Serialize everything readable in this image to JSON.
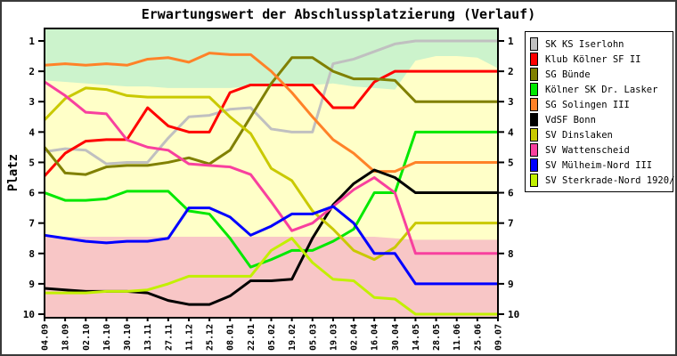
{
  "window": {
    "title": "Erwartungswert der Abschlussplatzierung (Verlauf)"
  },
  "chart_data": {
    "type": "line",
    "title": "Erwartungswert der Abschlussplatzierung (Verlauf)",
    "ylabel": "Platz",
    "xlabel": "",
    "y_inverted": true,
    "ylim": [
      1,
      10
    ],
    "y_ticks": [
      "1",
      "2",
      "3",
      "4",
      "5",
      "6",
      "7",
      "8",
      "9",
      "10"
    ],
    "x_labels": [
      "04.09",
      "18.09",
      "02.10",
      "16.10",
      "30.10",
      "13.11",
      "27.11",
      "11.12",
      "25.12",
      "08.01",
      "22.01",
      "05.02",
      "19.02",
      "05.03",
      "19.03",
      "02.04",
      "16.04",
      "30.04",
      "14.05",
      "28.05",
      "11.06",
      "25.06",
      "09.07"
    ],
    "legend_position": "right",
    "grid": false,
    "zones": {
      "green_zone_color": "#ccf3cc",
      "yellow_zone_color": "#ffffc8",
      "pink_zone_color": "#f8c6c6",
      "green_bottom_boundary": [
        2.3,
        2.35,
        2.4,
        2.45,
        2.5,
        2.5,
        2.55,
        2.55,
        2.55,
        2.55,
        2.5,
        2.5,
        2.5,
        2.45,
        2.4,
        2.5,
        2.55,
        2.6,
        1.65,
        1.5,
        1.5,
        1.55,
        1.9
      ],
      "pink_top_boundary": [
        7.45,
        7.45,
        7.45,
        7.45,
        7.45,
        7.45,
        7.45,
        7.45,
        7.45,
        7.45,
        7.45,
        7.45,
        7.45,
        7.45,
        7.45,
        7.45,
        7.45,
        7.5,
        7.55,
        7.55,
        7.55,
        7.55,
        7.55
      ]
    },
    "series": [
      {
        "name": "SK KS Iserlohn",
        "color": "#c0c0c0",
        "values": [
          4.65,
          4.55,
          4.6,
          5.05,
          5.0,
          5.0,
          4.2,
          3.5,
          3.45,
          3.25,
          3.2,
          3.9,
          4.0,
          4.0,
          1.75,
          1.6,
          1.35,
          1.1,
          1.0,
          1.0,
          1.0,
          1.0,
          1.0
        ]
      },
      {
        "name": "Klub Kölner SF II",
        "color": "#ff0000",
        "values": [
          5.45,
          4.7,
          4.3,
          4.25,
          4.25,
          3.2,
          3.8,
          4.0,
          4.0,
          2.7,
          2.45,
          2.45,
          2.45,
          2.45,
          3.2,
          3.2,
          2.35,
          2.0,
          2.0,
          2.0,
          2.0,
          2.0,
          2.0
        ]
      },
      {
        "name": "SG Bünde",
        "color": "#808000",
        "values": [
          4.5,
          5.35,
          5.4,
          5.15,
          5.1,
          5.1,
          5.0,
          4.85,
          5.05,
          4.6,
          3.5,
          2.4,
          1.55,
          1.55,
          2.0,
          2.25,
          2.25,
          2.3,
          3.0,
          3.0,
          3.0,
          3.0,
          3.0
        ]
      },
      {
        "name": "Kölner SK Dr. Lasker",
        "color": "#00e800",
        "values": [
          6.0,
          6.25,
          6.25,
          6.2,
          5.95,
          5.95,
          5.95,
          6.6,
          6.7,
          7.5,
          8.45,
          8.2,
          7.9,
          7.9,
          7.6,
          7.2,
          6.0,
          6.0,
          4.0,
          4.0,
          4.0,
          4.0,
          4.0
        ]
      },
      {
        "name": "SG Solingen III",
        "color": "#ff8228",
        "values": [
          1.8,
          1.75,
          1.8,
          1.75,
          1.8,
          1.6,
          1.55,
          1.7,
          1.4,
          1.45,
          1.45,
          2.0,
          2.7,
          3.5,
          4.25,
          4.7,
          5.3,
          5.3,
          5.0,
          5.0,
          5.0,
          5.0,
          5.0
        ]
      },
      {
        "name": "VdSF Bonn",
        "color": "#000000",
        "values": [
          9.15,
          9.2,
          9.25,
          9.25,
          9.25,
          9.3,
          9.55,
          9.68,
          9.68,
          9.4,
          8.9,
          8.9,
          8.85,
          7.5,
          6.4,
          5.7,
          5.25,
          5.5,
          6.0,
          6.0,
          6.0,
          6.0,
          6.0
        ]
      },
      {
        "name": "SV Dinslaken",
        "color": "#c9c900",
        "values": [
          3.6,
          2.9,
          2.55,
          2.6,
          2.8,
          2.85,
          2.85,
          2.85,
          2.85,
          3.5,
          4.05,
          5.2,
          5.6,
          6.6,
          7.2,
          7.9,
          8.2,
          7.8,
          7.0,
          7.0,
          7.0,
          7.0,
          7.0
        ]
      },
      {
        "name": "SV Wattenscheid",
        "color": "#f8409e",
        "values": [
          2.35,
          2.8,
          3.35,
          3.4,
          4.26,
          4.5,
          4.6,
          5.05,
          5.1,
          5.15,
          5.4,
          6.3,
          7.25,
          7.0,
          6.45,
          5.9,
          5.5,
          6.0,
          8.0,
          8.0,
          8.0,
          8.0,
          8.0
        ]
      },
      {
        "name": "SV Mülheim-Nord III",
        "color": "#0000ff",
        "values": [
          7.4,
          7.5,
          7.6,
          7.65,
          7.6,
          7.6,
          7.5,
          6.5,
          6.5,
          6.8,
          7.4,
          7.1,
          6.7,
          6.7,
          6.45,
          7.0,
          8.0,
          8.0,
          9.0,
          9.0,
          9.0,
          9.0,
          9.0
        ]
      },
      {
        "name": "SV Sterkrade-Nord 1920/25",
        "color": "#c2f000",
        "values": [
          9.3,
          9.3,
          9.3,
          9.25,
          9.25,
          9.2,
          9.0,
          8.75,
          8.75,
          8.75,
          8.75,
          7.9,
          7.5,
          8.3,
          8.85,
          8.9,
          9.45,
          9.5,
          10.0,
          10.0,
          10.0,
          10.0,
          10.0
        ]
      }
    ]
  }
}
